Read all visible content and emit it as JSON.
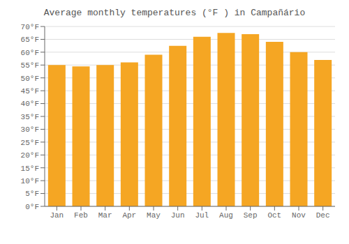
{
  "chart_data": {
    "type": "bar",
    "title": "Average monthly temperatures (°F ) in Campañário",
    "categories": [
      "Jan",
      "Feb",
      "Mar",
      "Apr",
      "May",
      "Jun",
      "Jul",
      "Aug",
      "Sep",
      "Oct",
      "Nov",
      "Dec"
    ],
    "values": [
      55,
      54.5,
      55,
      56,
      59,
      62.5,
      66,
      67.5,
      67,
      64,
      60,
      57
    ],
    "color": "#F5A623",
    "ylim": [
      0,
      70
    ],
    "yticks": [
      {
        "value": 0,
        "label": "0°F"
      },
      {
        "value": 5,
        "label": "5°F"
      },
      {
        "value": 10,
        "label": "10°F"
      },
      {
        "value": 15,
        "label": "15°F"
      },
      {
        "value": 20,
        "label": "20°F"
      },
      {
        "value": 25,
        "label": "25°F"
      },
      {
        "value": 30,
        "label": "30°F"
      },
      {
        "value": 35,
        "label": "35°F"
      },
      {
        "value": 40,
        "label": "40°F"
      },
      {
        "value": 45,
        "label": "45°F"
      },
      {
        "value": 50,
        "label": "50°F"
      },
      {
        "value": 55,
        "label": "55°F"
      },
      {
        "value": 60,
        "label": "60°F"
      },
      {
        "value": 65,
        "label": "65°F"
      },
      {
        "value": 70,
        "label": "70°F"
      }
    ],
    "grid": true
  }
}
